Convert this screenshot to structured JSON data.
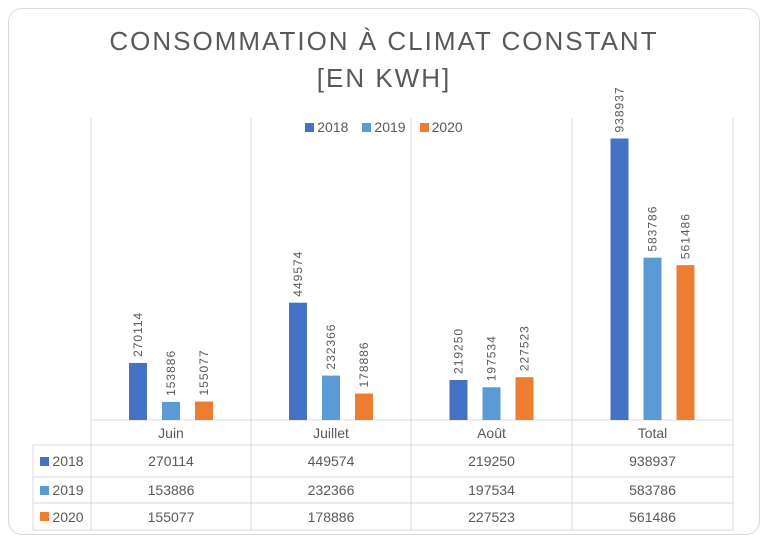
{
  "chart_data": {
    "type": "bar",
    "title": "CONSOMMATION À CLIMAT CONSTANT",
    "subtitle": "[EN KWH]",
    "categories": [
      "Juin",
      "Juillet",
      "Août",
      "Total"
    ],
    "series": [
      {
        "name": "2018",
        "color": "#4472C4",
        "values": [
          270114,
          449574,
          219250,
          938937
        ]
      },
      {
        "name": "2019",
        "color": "#5B9BD5",
        "values": [
          153886,
          232366,
          197534,
          583786
        ]
      },
      {
        "name": "2020",
        "color": "#ED7D31",
        "values": [
          155077,
          178886,
          227523,
          561486
        ]
      }
    ],
    "ylim": [
      100000,
      1000000
    ],
    "grid": false,
    "legend": "top-center",
    "data_table": true
  }
}
